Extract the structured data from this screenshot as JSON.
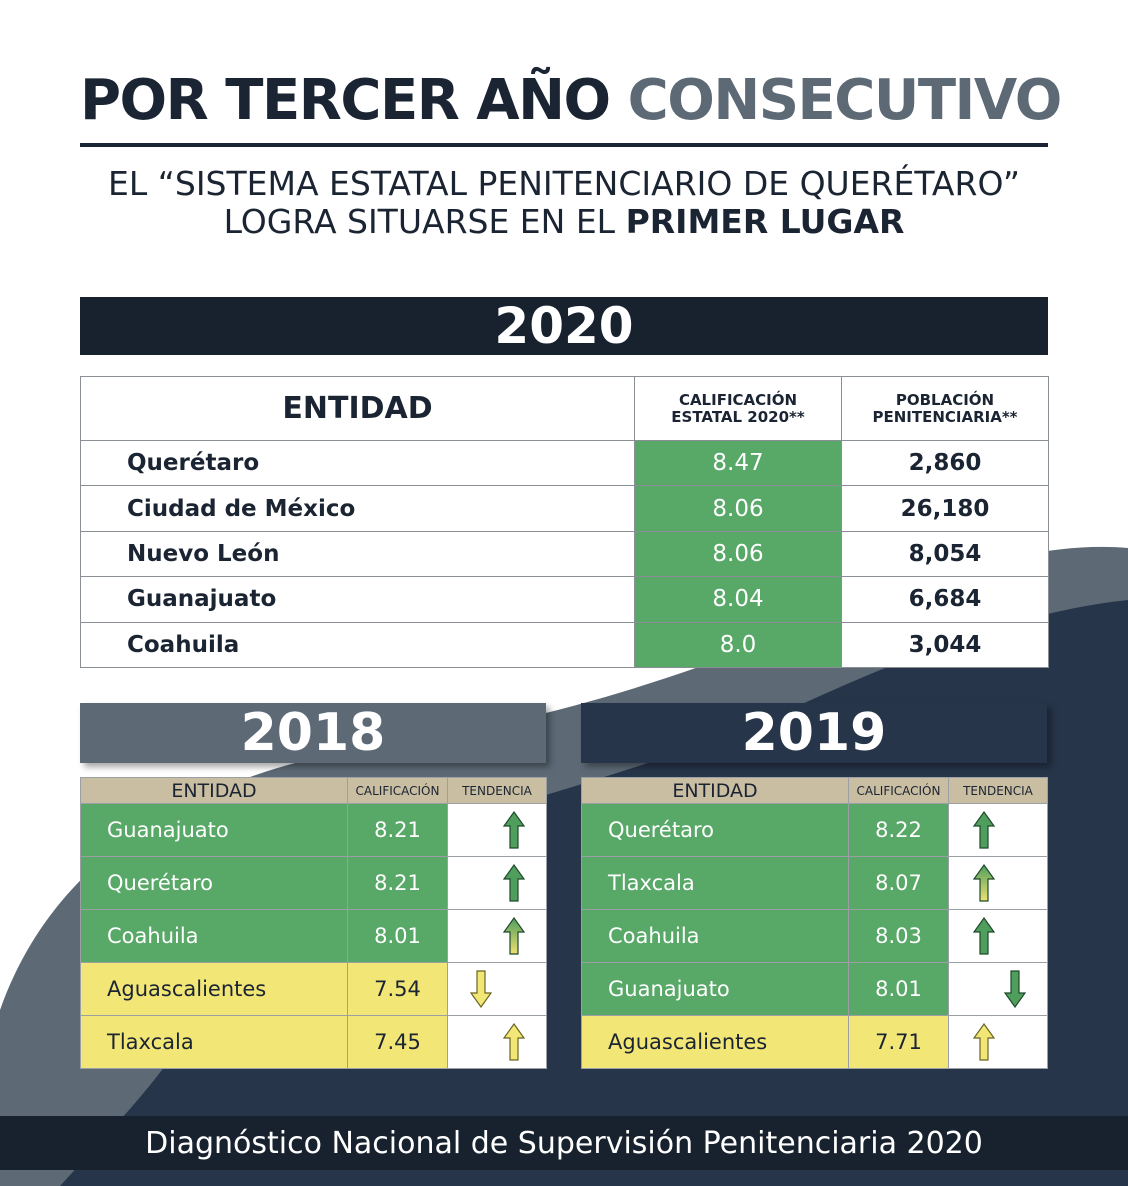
{
  "header": {
    "title_dark": "POR TERCER AÑO",
    "title_accent": "CONSECUTIVO",
    "subtitle_line1": "EL “SISTEMA ESTATAL PENITENCIARIO DE QUERÉTARO”",
    "subtitle_line2_regular": "LOGRA SITUARSE EN EL",
    "subtitle_line2_bold": "PRIMER LUGAR"
  },
  "section_2020": {
    "year": "2020",
    "headers": {
      "entidad": "ENTIDAD",
      "calificacion_l1": "CALIFICACIÓN",
      "calificacion_l2": "ESTATAL 2020**",
      "poblacion_l1": "POBLACIÓN",
      "poblacion_l2": "PENITENCIARIA**"
    },
    "rows": [
      {
        "entidad": "Querétaro",
        "calificacion": "8.47",
        "poblacion": "2,860"
      },
      {
        "entidad": "Ciudad de México",
        "calificacion": "8.06",
        "poblacion": "26,180"
      },
      {
        "entidad": "Nuevo León",
        "calificacion": "8.06",
        "poblacion": "8,054"
      },
      {
        "entidad": "Guanajuato",
        "calificacion": "8.04",
        "poblacion": "6,684"
      },
      {
        "entidad": "Coahuila",
        "calificacion": "8.0",
        "poblacion": "3,044"
      }
    ]
  },
  "section_2018": {
    "year": "2018",
    "headers": {
      "entidad": "ENTIDAD",
      "calificacion": "CALIFICACIÓN",
      "tendencia": "TENDENCIA"
    },
    "rows": [
      {
        "entidad": "Guanajuato",
        "calificacion": "8.21",
        "tendencia": "up",
        "status": "green"
      },
      {
        "entidad": "Querétaro",
        "calificacion": "8.21",
        "tendencia": "up",
        "status": "green"
      },
      {
        "entidad": "Coahuila",
        "calificacion": "8.01",
        "tendencia": "up",
        "status": "green"
      },
      {
        "entidad": "Aguascalientes",
        "calificacion": "7.54",
        "tendencia": "down",
        "status": "yellow"
      },
      {
        "entidad": "Tlaxcala",
        "calificacion": "7.45",
        "tendencia": "up",
        "status": "yellow"
      }
    ]
  },
  "section_2019": {
    "year": "2019",
    "headers": {
      "entidad": "ENTIDAD",
      "calificacion": "CALIFICACIÓN",
      "tendencia": "TENDENCIA"
    },
    "rows": [
      {
        "entidad": "Querétaro",
        "calificacion": "8.22",
        "tendencia": "up",
        "status": "green"
      },
      {
        "entidad": "Tlaxcala",
        "calificacion": "8.07",
        "tendencia": "up",
        "status": "green"
      },
      {
        "entidad": "Coahuila",
        "calificacion": "8.03",
        "tendencia": "up",
        "status": "green"
      },
      {
        "entidad": "Guanajuato",
        "calificacion": "8.01",
        "tendencia": "down",
        "status": "green"
      },
      {
        "entidad": "Aguascalientes",
        "calificacion": "7.71",
        "tendencia": "up",
        "status": "yellow"
      }
    ]
  },
  "footer": {
    "text": "Diagnóstico Nacional de Supervisión Penitenciaria 2020"
  },
  "colors": {
    "navy": "#18222f",
    "slate": "#5d6a76",
    "green": "#58a868",
    "yellow": "#f2e676",
    "tan": "#c9bda2"
  }
}
